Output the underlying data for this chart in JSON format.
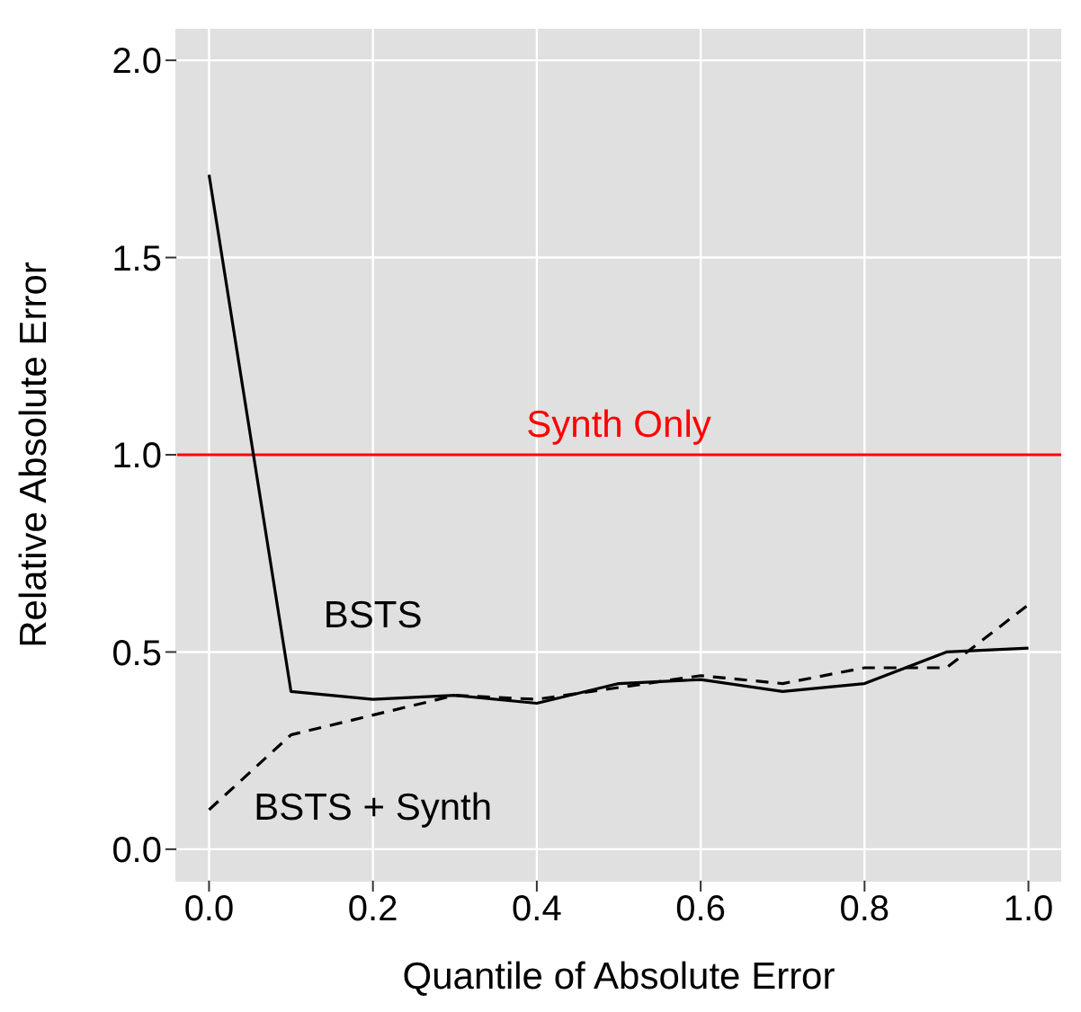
{
  "chart_data": {
    "type": "line",
    "xlabel": "Quantile of Absolute Error",
    "ylabel": "Relative Absolute Error",
    "x": [
      0,
      0.1,
      0.2,
      0.3,
      0.4,
      0.5,
      0.6,
      0.7,
      0.8,
      0.9,
      1.0
    ],
    "series": [
      {
        "name": "BSTS",
        "color": "#000000",
        "line_style": "solid",
        "values": [
          1.71,
          0.4,
          0.38,
          0.39,
          0.37,
          0.42,
          0.43,
          0.4,
          0.42,
          0.5,
          0.51
        ]
      },
      {
        "name": "BSTS + Synth",
        "color": "#000000",
        "line_style": "dashed",
        "values": [
          0.1,
          0.29,
          0.34,
          0.39,
          0.38,
          0.41,
          0.44,
          0.42,
          0.46,
          0.46,
          0.62
        ]
      }
    ],
    "ref_lines": [
      {
        "axis": "y",
        "value": 1,
        "label": "Synth Only",
        "color": "#ff0000"
      }
    ],
    "xlim": [
      -0.04,
      1.04
    ],
    "xticks": [
      {
        "value": 0,
        "label": "0.0"
      },
      0.2,
      0.4,
      0.6,
      0.8,
      {
        "value": 1,
        "label": "1.0"
      }
    ],
    "ylim": [
      -0.08,
      2.08
    ],
    "yticks": [
      {
        "value": 0,
        "label": "0.0"
      },
      0.5,
      {
        "value": 1,
        "label": "1.0"
      },
      1.5,
      {
        "value": 2,
        "label": "2.0"
      }
    ],
    "grid": true,
    "marker": "none"
  }
}
